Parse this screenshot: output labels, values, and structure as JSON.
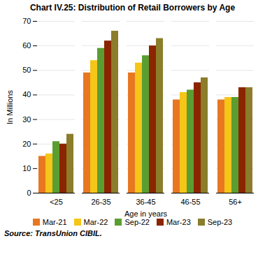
{
  "chart_data": {
    "type": "bar",
    "title": "Chart IV.25: Distribution of Retail Borrowers by Age",
    "xlabel": "Age in years",
    "ylabel": "In Millions",
    "source": "Source: TransUnion CIBIL.",
    "categories": [
      "<25",
      "26-35",
      "36-45",
      "46-55",
      "56+"
    ],
    "series": [
      {
        "name": "Mar-21",
        "color": "#E87722",
        "values": [
          15,
          49,
          49,
          38,
          38
        ]
      },
      {
        "name": "Mar-22",
        "color": "#F5C518",
        "values": [
          16,
          54,
          53,
          41,
          39
        ]
      },
      {
        "name": "Sep-22",
        "color": "#5A9E32",
        "values": [
          21,
          59,
          56,
          42,
          39
        ]
      },
      {
        "name": "Mar-23",
        "color": "#8B2500",
        "values": [
          20,
          62,
          60,
          45,
          43
        ]
      },
      {
        "name": "Sep-23",
        "color": "#8B7D2A",
        "values": [
          24,
          66,
          63,
          47,
          43
        ]
      }
    ],
    "ylim": [
      0,
      70
    ],
    "yticks": [
      0,
      10,
      20,
      30,
      40,
      50,
      60,
      70
    ],
    "grid": true,
    "legend": "bottom"
  }
}
